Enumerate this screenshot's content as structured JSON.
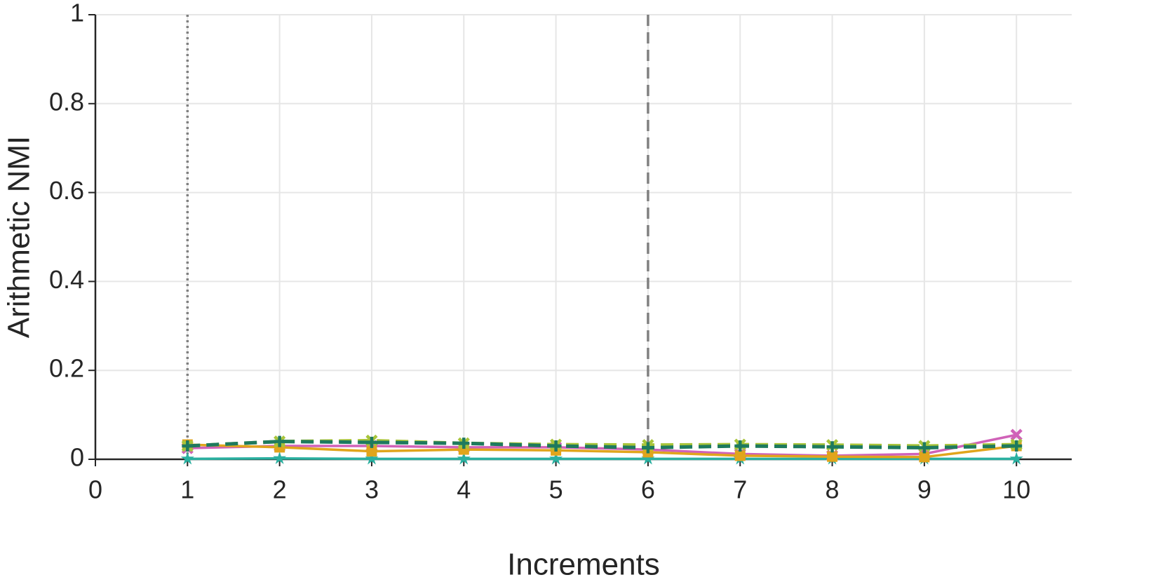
{
  "chart_data": {
    "type": "line",
    "x_label": "Increments",
    "y_label": "Arithmetic NMI",
    "x": [
      1,
      2,
      3,
      4,
      5,
      6,
      7,
      8,
      9,
      10
    ],
    "xlim": [
      0,
      10.6
    ],
    "xticks": [
      0,
      1,
      2,
      3,
      4,
      5,
      6,
      7,
      8,
      9,
      10
    ],
    "ylim": [
      0,
      1
    ],
    "yticks": [
      0,
      0.2,
      0.4,
      0.6,
      0.8,
      1
    ],
    "grid": true,
    "vlines": [
      {
        "x": 1,
        "style": "dotted"
      },
      {
        "x": 6,
        "style": "dashed"
      }
    ],
    "series": [
      {
        "color": "#2ab0a0",
        "dash": "solid",
        "marker": "star",
        "values": [
          0.001,
          0.002,
          0.001,
          0.001,
          0.001,
          0.001,
          0.001,
          0.001,
          0.001,
          0.001
        ]
      },
      {
        "color": "#d062b8",
        "dash": "solid",
        "marker": "x",
        "values": [
          0.025,
          0.03,
          0.03,
          0.027,
          0.027,
          0.022,
          0.012,
          0.008,
          0.012,
          0.055
        ]
      },
      {
        "color": "#e0a51c",
        "dash": "solid",
        "marker": "square",
        "values": [
          0.033,
          0.027,
          0.018,
          0.022,
          0.02,
          0.016,
          0.008,
          0.006,
          0.005,
          0.03
        ]
      },
      {
        "color": "#a8c43a",
        "dash": "dashed",
        "marker": "x",
        "values": [
          0.03,
          0.04,
          0.042,
          0.036,
          0.033,
          0.032,
          0.033,
          0.032,
          0.03,
          0.033
        ]
      },
      {
        "color": "#1e7a5e",
        "dash": "dashed",
        "marker": "plus",
        "values": [
          0.03,
          0.04,
          0.038,
          0.036,
          0.03,
          0.026,
          0.03,
          0.028,
          0.026,
          0.03
        ]
      }
    ]
  }
}
